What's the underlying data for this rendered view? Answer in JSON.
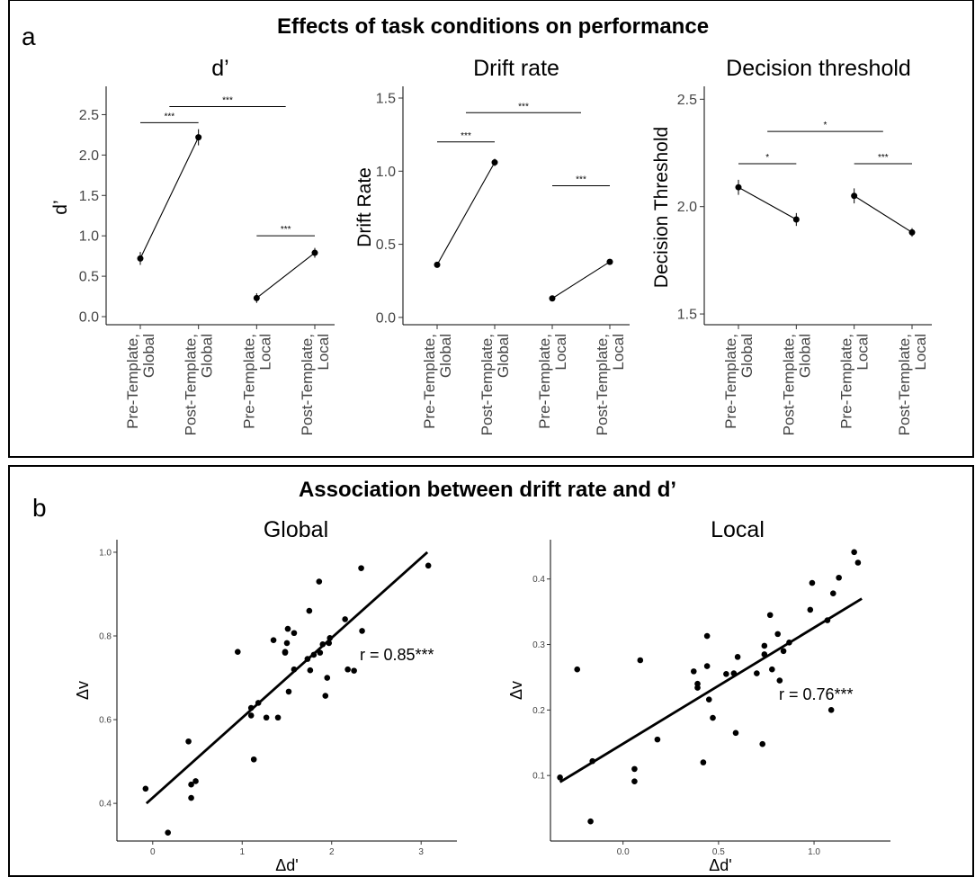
{
  "panel_a": {
    "letter": "a",
    "title": "Effects of task conditions on performance"
  },
  "panel_b": {
    "letter": "b",
    "title": "Association between drift rate and d’"
  },
  "chart_data": [
    {
      "type": "scatter",
      "title": "d’",
      "ylabel": "d’",
      "categories": [
        "Pre-Template,\nGlobal",
        "Post-Template,\nGlobal",
        "Pre-Template,\nLocal",
        "Post-Template,\nLocal"
      ],
      "values": [
        0.72,
        2.22,
        0.23,
        0.79
      ],
      "errors": [
        0.08,
        0.1,
        0.06,
        0.06
      ],
      "yticks": [
        0.0,
        0.5,
        1.0,
        1.5,
        2.0,
        2.5
      ],
      "ylim": [
        -0.1,
        2.85
      ],
      "significance": [
        {
          "from": 0,
          "to": 1,
          "y": 2.4,
          "label": "***"
        },
        {
          "from": 0.5,
          "to": 2.5,
          "y": 2.6,
          "label": "***"
        },
        {
          "from": 2,
          "to": 3,
          "y": 1.0,
          "label": "***"
        }
      ]
    },
    {
      "type": "scatter",
      "title": "Drift rate",
      "ylabel": "Drift Rate",
      "categories": [
        "Pre-Template,\nGlobal",
        "Post-Template,\nGlobal",
        "Pre-Template,\nLocal",
        "Post-Template,\nLocal"
      ],
      "values": [
        0.36,
        1.06,
        0.13,
        0.38
      ],
      "errors": [
        0.015,
        0.025,
        0.01,
        0.01
      ],
      "yticks": [
        0.0,
        0.5,
        1.0,
        1.5
      ],
      "ylim": [
        -0.05,
        1.58
      ],
      "significance": [
        {
          "from": 0,
          "to": 1,
          "y": 1.2,
          "label": "***"
        },
        {
          "from": 0.5,
          "to": 2.5,
          "y": 1.4,
          "label": "***"
        },
        {
          "from": 2,
          "to": 3,
          "y": 0.9,
          "label": "***"
        }
      ]
    },
    {
      "type": "scatter",
      "title": "Decision threshold",
      "ylabel": "Decision Threshold",
      "categories": [
        "Pre-Template,\nGlobal",
        "Post-Template,\nGlobal",
        "Pre-Template,\nLocal",
        "Post-Template,\nLocal"
      ],
      "values": [
        2.09,
        1.94,
        2.05,
        1.88
      ],
      "errors": [
        0.035,
        0.03,
        0.035,
        0.02
      ],
      "yticks": [
        1.5,
        2.0,
        2.5
      ],
      "ylim": [
        1.45,
        2.56
      ],
      "significance": [
        {
          "from": 0,
          "to": 1,
          "y": 2.2,
          "label": "*"
        },
        {
          "from": 0.5,
          "to": 2.5,
          "y": 2.35,
          "label": "*"
        },
        {
          "from": 2,
          "to": 3,
          "y": 2.2,
          "label": "***"
        }
      ]
    },
    {
      "type": "scatter",
      "title": "Global",
      "xlabel": "Δd'",
      "ylabel": "Δv",
      "annotation": "r = 0.85***",
      "xlim": [
        -0.4,
        3.4
      ],
      "ylim": [
        0.31,
        1.03
      ],
      "xticks": [
        0,
        1,
        2,
        3
      ],
      "yticks": [
        0.4,
        0.6,
        0.8,
        1.0
      ],
      "fit_line": {
        "x": [
          -0.07,
          3.07
        ],
        "y": [
          0.4,
          1.0
        ]
      },
      "points": [
        [
          -0.08,
          0.435
        ],
        [
          0.17,
          0.33
        ],
        [
          0.4,
          0.548
        ],
        [
          0.43,
          0.445
        ],
        [
          0.43,
          0.413
        ],
        [
          0.48,
          0.453
        ],
        [
          0.95,
          0.762
        ],
        [
          1.1,
          0.61
        ],
        [
          1.1,
          0.628
        ],
        [
          1.13,
          0.505
        ],
        [
          1.18,
          0.64
        ],
        [
          1.27,
          0.605
        ],
        [
          1.35,
          0.79
        ],
        [
          1.4,
          0.605
        ],
        [
          1.48,
          0.762
        ],
        [
          1.48,
          0.76
        ],
        [
          1.5,
          0.783
        ],
        [
          1.51,
          0.817
        ],
        [
          1.52,
          0.667
        ],
        [
          1.58,
          0.72
        ],
        [
          1.58,
          0.807
        ],
        [
          1.73,
          0.745
        ],
        [
          1.75,
          0.86
        ],
        [
          1.76,
          0.718
        ],
        [
          1.8,
          0.755
        ],
        [
          1.86,
          0.93
        ],
        [
          1.87,
          0.76
        ],
        [
          1.9,
          0.78
        ],
        [
          1.93,
          0.657
        ],
        [
          1.95,
          0.7
        ],
        [
          1.97,
          0.783
        ],
        [
          1.98,
          0.795
        ],
        [
          2.15,
          0.84
        ],
        [
          2.18,
          0.72
        ],
        [
          2.25,
          0.717
        ],
        [
          2.34,
          0.812
        ],
        [
          2.33,
          0.962
        ],
        [
          3.08,
          0.968
        ]
      ]
    },
    {
      "type": "scatter",
      "title": "Local",
      "xlabel": "Δd'",
      "ylabel": "Δv",
      "annotation": "r = 0.76***",
      "xlim": [
        -0.38,
        1.4
      ],
      "ylim": [
        0.0,
        0.46
      ],
      "xticks": [
        0.0,
        0.5,
        1.0
      ],
      "yticks": [
        0.1,
        0.2,
        0.3,
        0.4
      ],
      "fit_line": {
        "x": [
          -0.33,
          1.25
        ],
        "y": [
          0.09,
          0.37
        ]
      },
      "points": [
        [
          -0.33,
          0.097
        ],
        [
          -0.24,
          0.262
        ],
        [
          -0.17,
          0.03
        ],
        [
          -0.16,
          0.122
        ],
        [
          0.06,
          0.091
        ],
        [
          0.06,
          0.11
        ],
        [
          0.09,
          0.276
        ],
        [
          0.18,
          0.155
        ],
        [
          0.37,
          0.259
        ],
        [
          0.39,
          0.24
        ],
        [
          0.39,
          0.234
        ],
        [
          0.42,
          0.12
        ],
        [
          0.44,
          0.267
        ],
        [
          0.44,
          0.313
        ],
        [
          0.45,
          0.216
        ],
        [
          0.47,
          0.188
        ],
        [
          0.54,
          0.255
        ],
        [
          0.58,
          0.256
        ],
        [
          0.59,
          0.165
        ],
        [
          0.6,
          0.281
        ],
        [
          0.7,
          0.256
        ],
        [
          0.73,
          0.148
        ],
        [
          0.74,
          0.298
        ],
        [
          0.74,
          0.285
        ],
        [
          0.77,
          0.345
        ],
        [
          0.78,
          0.262
        ],
        [
          0.81,
          0.316
        ],
        [
          0.82,
          0.245
        ],
        [
          0.84,
          0.29
        ],
        [
          0.87,
          0.303
        ],
        [
          0.98,
          0.353
        ],
        [
          0.99,
          0.394
        ],
        [
          1.07,
          0.337
        ],
        [
          1.09,
          0.2
        ],
        [
          1.1,
          0.378
        ],
        [
          1.13,
          0.402
        ],
        [
          1.21,
          0.441
        ],
        [
          1.23,
          0.425
        ]
      ]
    }
  ]
}
